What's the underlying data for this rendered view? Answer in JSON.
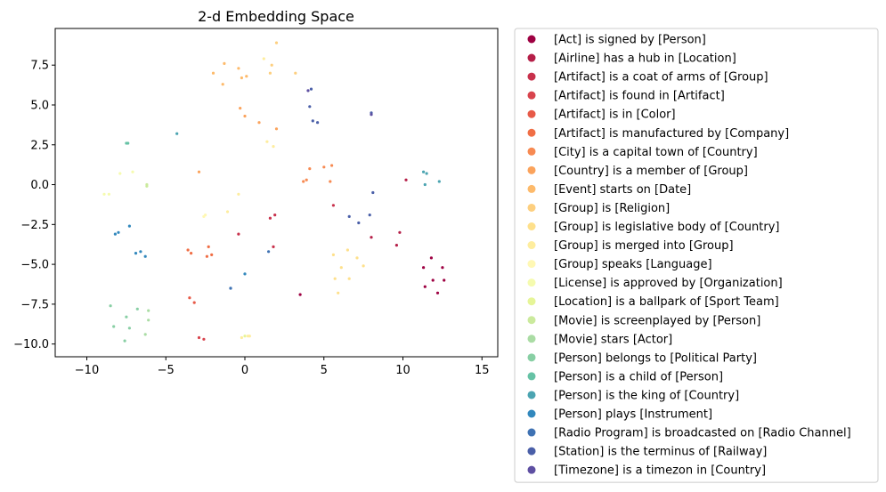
{
  "chart_data": {
    "type": "scatter",
    "title": "2-d Embedding Space",
    "xlabel": "",
    "ylabel": "",
    "xlim": [
      -12,
      16
    ],
    "ylim": [
      -10.8,
      9.8
    ],
    "xticks": [
      -10,
      -5,
      0,
      5,
      10,
      15
    ],
    "yticks": [
      -10.0,
      -7.5,
      -5.0,
      -2.5,
      0.0,
      2.5,
      5.0,
      7.5
    ],
    "ytick_labels": [
      "−10.0",
      "−7.5",
      "−5.0",
      "−2.5",
      "0.0",
      "2.5",
      "5.0",
      "7.5"
    ],
    "xtick_labels": [
      "−10",
      "−5",
      "0",
      "5",
      "10",
      "15"
    ],
    "grid": false,
    "legend_position": "outside-right",
    "series": [
      {
        "name": "[Act] is signed by [Person]",
        "color": "#9e0142",
        "points": [
          [
            3.5,
            -6.9
          ],
          [
            11.3,
            -5.2
          ],
          [
            11.8,
            -4.6
          ],
          [
            12.5,
            -5.2
          ],
          [
            11.4,
            -6.4
          ],
          [
            11.9,
            -6.0
          ],
          [
            12.2,
            -6.8
          ],
          [
            12.6,
            -6.0
          ]
        ]
      },
      {
        "name": "[Airline] has a hub in [Location]",
        "color": "#b51f48",
        "points": [
          [
            8.0,
            -3.3
          ],
          [
            9.6,
            -3.8
          ],
          [
            9.8,
            -3.0
          ],
          [
            10.2,
            0.3
          ]
        ]
      },
      {
        "name": "[Artifact] is a coat of arms of [Group]",
        "color": "#c8314c",
        "points": [
          [
            -0.4,
            -3.1
          ],
          [
            1.6,
            -2.1
          ],
          [
            1.9,
            -1.9
          ],
          [
            1.8,
            -3.9
          ],
          [
            5.6,
            -1.3
          ]
        ]
      },
      {
        "name": "[Artifact] is found in [Artifact]",
        "color": "#d8444d",
        "points": [
          [
            -2.9,
            -9.6
          ],
          [
            -2.6,
            -9.7
          ]
        ]
      },
      {
        "name": "[Artifact] is in [Color]",
        "color": "#e75a48",
        "points": [
          [
            -3.5,
            -7.1
          ],
          [
            -3.2,
            -7.4
          ]
        ]
      },
      {
        "name": "[Artifact] is manufactured by [Company]",
        "color": "#f06e45",
        "points": [
          [
            -3.6,
            -4.1
          ],
          [
            -3.4,
            -4.3
          ],
          [
            -2.3,
            -3.9
          ],
          [
            -2.4,
            -4.5
          ],
          [
            -2.1,
            -4.4
          ]
        ]
      },
      {
        "name": "[City] is a capital town of [Country]",
        "color": "#f78a52",
        "points": [
          [
            3.7,
            0.2
          ],
          [
            3.9,
            0.3
          ],
          [
            4.1,
            1.0
          ],
          [
            5.0,
            1.1
          ],
          [
            5.4,
            0.2
          ],
          [
            5.5,
            1.2
          ]
        ]
      },
      {
        "name": "[Country] is a member of [Group]",
        "color": "#fba35c",
        "points": [
          [
            -2.9,
            0.8
          ],
          [
            -0.3,
            4.8
          ],
          [
            0.0,
            4.3
          ],
          [
            0.9,
            3.9
          ],
          [
            2.0,
            3.5
          ]
        ]
      },
      {
        "name": "[Event] starts on [Date]",
        "color": "#fdba6b",
        "points": [
          [
            -2.0,
            7.0
          ],
          [
            -1.4,
            6.3
          ],
          [
            -1.3,
            7.6
          ],
          [
            -0.4,
            7.3
          ],
          [
            -0.2,
            6.7
          ],
          [
            0.1,
            6.8
          ]
        ]
      },
      {
        "name": "[Group] is [Religion]",
        "color": "#fdcf7f",
        "points": [
          [
            1.7,
            7.5
          ],
          [
            1.6,
            7.0
          ],
          [
            2.0,
            8.9
          ],
          [
            3.2,
            7.0
          ]
        ]
      },
      {
        "name": "[Group] is legislative body of [Country]",
        "color": "#fee08b",
        "points": [
          [
            5.6,
            -4.4
          ],
          [
            6.1,
            -5.2
          ],
          [
            6.5,
            -4.1
          ],
          [
            6.6,
            -5.9
          ],
          [
            7.1,
            -4.6
          ],
          [
            7.5,
            -5.1
          ],
          [
            5.7,
            -5.9
          ],
          [
            5.9,
            -6.8
          ]
        ]
      },
      {
        "name": "[Group] is merged into [Group]",
        "color": "#feed9e",
        "points": [
          [
            1.2,
            7.9
          ],
          [
            1.4,
            2.7
          ],
          [
            1.8,
            2.4
          ],
          [
            -1.1,
            -1.7
          ],
          [
            -0.4,
            -0.6
          ],
          [
            -0.2,
            -9.6
          ],
          [
            0.2,
            -9.5
          ],
          [
            0.3,
            -9.5
          ]
        ]
      },
      {
        "name": "[Group] speaks [Language]",
        "color": "#fff8b4",
        "points": [
          [
            -2.6,
            -2.0
          ],
          [
            -2.5,
            -1.9
          ]
        ]
      },
      {
        "name": "[License] is approved by [Organization]",
        "color": "#f5fbaf",
        "points": [
          [
            -8.9,
            -0.6
          ],
          [
            -8.6,
            -0.6
          ],
          [
            -7.9,
            0.7
          ],
          [
            -7.1,
            0.8
          ]
        ]
      },
      {
        "name": "[Location] is a ballpark of [Sport Team]",
        "color": "#e6f598",
        "points": [
          [
            0.0,
            -9.5
          ]
        ]
      },
      {
        "name": "[Movie] is screenplayed by [Person]",
        "color": "#cbea9d",
        "points": [
          [
            -6.2,
            -0.1
          ],
          [
            -6.2,
            0.0
          ]
        ]
      },
      {
        "name": "[Movie] stars [Actor]",
        "color": "#aadca4",
        "points": [
          [
            -6.1,
            -7.9
          ],
          [
            -6.1,
            -8.5
          ],
          [
            -6.3,
            -9.4
          ]
        ]
      },
      {
        "name": "[Person] belongs to [Political Party]",
        "color": "#88cfa4",
        "points": [
          [
            -8.5,
            -7.6
          ],
          [
            -8.3,
            -8.9
          ],
          [
            -7.5,
            -8.3
          ],
          [
            -7.3,
            -9.0
          ],
          [
            -7.6,
            -9.8
          ],
          [
            -6.8,
            -7.8
          ]
        ]
      },
      {
        "name": "[Person] is a child of [Person]",
        "color": "#66c2a5",
        "points": [
          [
            -7.5,
            2.6
          ],
          [
            -7.4,
            2.6
          ]
        ]
      },
      {
        "name": "[Person] is the king of [Country]",
        "color": "#4ba4b1",
        "points": [
          [
            -4.3,
            3.2
          ],
          [
            11.3,
            0.8
          ],
          [
            11.5,
            0.7
          ],
          [
            11.4,
            0.0
          ],
          [
            12.3,
            0.2
          ]
        ]
      },
      {
        "name": "[Person] plays [Instrument]",
        "color": "#3288bd",
        "points": [
          [
            -8.2,
            -3.1
          ],
          [
            -8.0,
            -3.0
          ],
          [
            -7.3,
            -2.6
          ],
          [
            -6.9,
            -4.3
          ],
          [
            -6.6,
            -4.2
          ],
          [
            -6.3,
            -4.5
          ],
          [
            -0.9,
            -6.5
          ],
          [
            0.0,
            -5.6
          ]
        ]
      },
      {
        "name": "[Radio Program] is broadcasted on [Radio Channel]",
        "color": "#3f72b3",
        "points": [
          [
            1.5,
            -4.2
          ],
          [
            -0.9,
            -6.5
          ]
        ]
      },
      {
        "name": "[Station] is the terminus of [Railway]",
        "color": "#4a5fa8",
        "points": [
          [
            4.2,
            6.0
          ],
          [
            4.1,
            4.9
          ],
          [
            4.3,
            4.0
          ],
          [
            4.6,
            3.9
          ],
          [
            8.0,
            4.5
          ],
          [
            6.6,
            -2.0
          ],
          [
            7.2,
            -2.4
          ],
          [
            7.9,
            -1.9
          ],
          [
            8.1,
            -0.5
          ]
        ]
      },
      {
        "name": "[Timezone] is a timezon in [Country]",
        "color": "#5e4fa2",
        "points": [
          [
            4.0,
            5.9
          ],
          [
            8.0,
            4.4
          ]
        ]
      }
    ]
  }
}
